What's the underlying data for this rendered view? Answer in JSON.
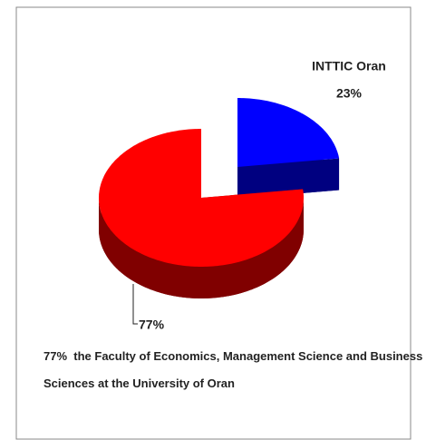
{
  "chart_data": {
    "type": "pie",
    "categories": [
      "INTTIC Oran",
      "the Faculty of Economics, Management Science and Business Sciences at the University of Oran"
    ],
    "values": [
      23,
      77
    ],
    "value_labels": [
      "23%",
      "77%"
    ],
    "colors": [
      "#0000ff",
      "#ff0000"
    ]
  }
}
